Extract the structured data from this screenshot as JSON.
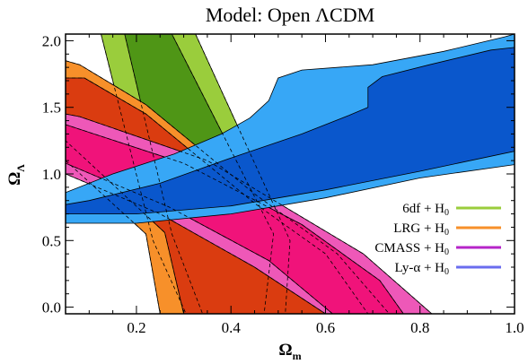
{
  "chart_data": {
    "type": "contour",
    "title": "Model: Open ΛCDM",
    "xlabel": {
      "main": "Ω",
      "sub": "m"
    },
    "ylabel": {
      "main": "Ω",
      "sub": "Λ"
    },
    "xlim": [
      0.05,
      1.0
    ],
    "ylim": [
      -0.05,
      2.05
    ],
    "xticks": [
      {
        "v": 0.2,
        "label": "0.2"
      },
      {
        "v": 0.4,
        "label": "0.4"
      },
      {
        "v": 0.6,
        "label": "0.6"
      },
      {
        "v": 0.8,
        "label": "0.8"
      },
      {
        "v": 1.0,
        "label": "1.0"
      }
    ],
    "yticks": [
      {
        "v": 0.0,
        "label": "0.0"
      },
      {
        "v": 0.5,
        "label": "0.5"
      },
      {
        "v": 1.0,
        "label": "1.0"
      },
      {
        "v": 1.5,
        "label": "1.5"
      },
      {
        "v": 2.0,
        "label": "2.0"
      }
    ],
    "legend_position": "lower-right",
    "series": [
      {
        "id": "6df",
        "name": "6df + H",
        "name_sub": "0",
        "color_outer": "#9acd3c",
        "color_inner": "#4f9616",
        "legend_color": "#9acd3c",
        "outer": [
          [
            0.125,
            2.05
          ],
          [
            0.325,
            2.05
          ],
          [
            0.525,
            0.5
          ],
          [
            0.515,
            -0.05
          ],
          [
            0.305,
            -0.05
          ],
          [
            0.235,
            0.5
          ]
        ],
        "inner": [
          [
            0.175,
            2.05
          ],
          [
            0.275,
            2.05
          ],
          [
            0.49,
            0.55
          ],
          [
            0.47,
            -0.05
          ],
          [
            0.34,
            -0.05
          ],
          [
            0.275,
            0.55
          ]
        ]
      },
      {
        "id": "lrg",
        "name": "LRG + H",
        "name_sub": "0",
        "color_outer": "#f7902a",
        "color_inner": "#da3c10",
        "legend_color": "#f7902a",
        "outer": [
          [
            0.05,
            1.85
          ],
          [
            0.08,
            1.82
          ],
          [
            0.22,
            1.52
          ],
          [
            0.45,
            0.85
          ],
          [
            0.625,
            0.4
          ],
          [
            0.735,
            -0.05
          ],
          [
            0.25,
            -0.05
          ],
          [
            0.22,
            0.55
          ],
          [
            0.05,
            1.1
          ]
        ],
        "inner": [
          [
            0.05,
            1.72
          ],
          [
            0.09,
            1.72
          ],
          [
            0.22,
            1.45
          ],
          [
            0.45,
            0.78
          ],
          [
            0.6,
            0.4
          ],
          [
            0.69,
            -0.05
          ],
          [
            0.3,
            -0.05
          ],
          [
            0.26,
            0.56
          ],
          [
            0.05,
            1.25
          ]
        ]
      },
      {
        "id": "cmass",
        "name": "CMASS + H",
        "name_sub": "0",
        "color_outer": "#ee58b8",
        "color_inner": "#f0137a",
        "legend_color": "#b624c8",
        "outer": [
          [
            0.05,
            1.45
          ],
          [
            0.08,
            1.43
          ],
          [
            0.35,
            1.1
          ],
          [
            0.68,
            0.4
          ],
          [
            0.825,
            -0.05
          ],
          [
            0.6,
            -0.05
          ],
          [
            0.45,
            0.3
          ],
          [
            0.25,
            0.7
          ],
          [
            0.05,
            1.0
          ]
        ],
        "inner": [
          [
            0.05,
            1.37
          ],
          [
            0.3,
            1.08
          ],
          [
            0.55,
            0.62
          ],
          [
            0.715,
            0.2
          ],
          [
            0.765,
            -0.05
          ],
          [
            0.615,
            -0.05
          ],
          [
            0.48,
            0.35
          ],
          [
            0.27,
            0.75
          ],
          [
            0.05,
            1.08
          ]
        ]
      },
      {
        "id": "lya",
        "name": "Ly-α + H",
        "name_sub": "0",
        "color_outer": "#37a7f6",
        "color_inner": "#0a57cc",
        "legend_color": "#6a6cee",
        "outer": [
          [
            0.05,
            0.63
          ],
          [
            0.2,
            0.63
          ],
          [
            0.4,
            0.7
          ],
          [
            0.6,
            0.82
          ],
          [
            0.8,
            0.97
          ],
          [
            1.0,
            1.07
          ],
          [
            1.0,
            2.05
          ],
          [
            0.98,
            2.03
          ],
          [
            0.85,
            1.92
          ],
          [
            0.7,
            1.82
          ],
          [
            0.55,
            1.78
          ],
          [
            0.5,
            1.72
          ],
          [
            0.48,
            1.55
          ],
          [
            0.44,
            1.42
          ],
          [
            0.38,
            1.3
          ],
          [
            0.28,
            1.15
          ],
          [
            0.15,
            1.0
          ],
          [
            0.05,
            0.86
          ]
        ],
        "inner": [
          [
            0.05,
            0.7
          ],
          [
            0.2,
            0.7
          ],
          [
            0.4,
            0.76
          ],
          [
            0.6,
            0.88
          ],
          [
            0.8,
            1.02
          ],
          [
            1.0,
            1.17
          ],
          [
            1.0,
            1.95
          ],
          [
            0.95,
            1.93
          ],
          [
            0.82,
            1.82
          ],
          [
            0.72,
            1.73
          ],
          [
            0.69,
            1.65
          ],
          [
            0.69,
            1.5
          ],
          [
            0.65,
            1.44
          ],
          [
            0.55,
            1.3
          ],
          [
            0.4,
            1.12
          ],
          [
            0.25,
            0.93
          ],
          [
            0.1,
            0.8
          ],
          [
            0.05,
            0.77
          ]
        ]
      }
    ]
  }
}
